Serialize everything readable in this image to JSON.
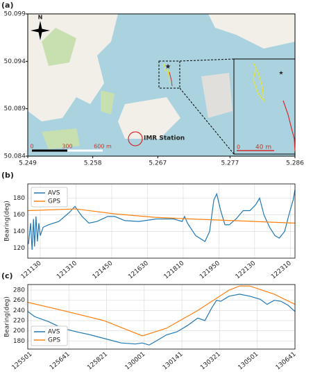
{
  "chart_data": [
    {
      "type": "map",
      "label": "(a)",
      "xlim": [
        5.249,
        5.286
      ],
      "xticks": [
        5.249,
        5.258,
        5.267,
        5.277,
        5.286
      ],
      "ylim": [
        50.084,
        50.099
      ],
      "yticks": [
        50.084,
        50.089,
        50.094,
        50.099
      ],
      "annotations": [
        "N",
        "IMR Station",
        "0",
        "300",
        "600 m",
        "0",
        "40 m"
      ]
    },
    {
      "type": "line",
      "label": "(b)",
      "ylabel": "Bearing(deg)",
      "legend": "upper left",
      "grid": true,
      "xlim": [
        "12:10:55",
        "12:23:23"
      ],
      "xticks": [
        {
          "value": "12:11:30",
          "label": "121130"
        },
        {
          "value": "12:13:10",
          "label": "121310"
        },
        {
          "value": "12:14:50",
          "label": "121450"
        },
        {
          "value": "12:16:30",
          "label": "121630"
        },
        {
          "value": "12:18:10",
          "label": "121810"
        },
        {
          "value": "12:19:50",
          "label": "121950"
        },
        {
          "value": "12:21:30",
          "label": "122130"
        },
        {
          "value": "12:23:10",
          "label": "122310"
        }
      ],
      "ylim": [
        108,
        197
      ],
      "yticks": [
        120,
        140,
        160,
        180
      ],
      "series": [
        {
          "name": "AVS",
          "color": "#1f77b4",
          "x": [
            "12:10:57",
            "12:11:03",
            "12:11:07",
            "12:11:11",
            "12:11:14",
            "12:11:18",
            "12:11:22",
            "12:11:26",
            "12:11:30",
            "12:11:38",
            "12:11:53",
            "12:12:22",
            "12:12:52",
            "12:13:07",
            "12:13:27",
            "12:13:46",
            "12:14:09",
            "12:14:39",
            "12:14:58",
            "12:15:27",
            "12:16:06",
            "12:16:55",
            "12:17:43",
            "12:18:07",
            "12:18:14",
            "12:18:22",
            "12:18:45",
            "12:19:11",
            "12:19:24",
            "12:19:36",
            "12:19:44",
            "12:19:55",
            "12:20:07",
            "12:20:19",
            "12:20:38",
            "12:20:58",
            "12:21:17",
            "12:21:33",
            "12:21:44",
            "12:21:56",
            "12:22:12",
            "12:22:27",
            "12:22:39",
            "12:22:54",
            "12:23:06",
            "12:23:18",
            "12:23:23"
          ],
          "values": [
            125,
            150,
            118,
            155,
            122,
            158,
            128,
            150,
            135,
            145,
            148,
            152,
            163,
            170,
            158,
            150,
            152,
            158,
            158,
            153,
            152,
            155,
            155,
            152,
            158,
            150,
            135,
            128,
            140,
            178,
            185,
            165,
            148,
            148,
            155,
            165,
            165,
            172,
            180,
            160,
            145,
            135,
            132,
            140,
            160,
            178,
            190
          ]
        },
        {
          "name": "GPS",
          "color": "#ff7f0e",
          "x": [
            "12:10:55",
            "12:13:10",
            "12:15:00",
            "12:16:50",
            "12:18:30",
            "12:20:30",
            "12:23:23"
          ],
          "values": [
            165,
            167,
            161,
            157,
            155,
            153,
            150
          ]
        }
      ]
    },
    {
      "type": "line",
      "label": "(c)",
      "ylabel": "Bearing(deg)",
      "legend": "lower left",
      "grid": true,
      "xlim": [
        "12:54:52",
        "13:06:41"
      ],
      "xticks": [
        {
          "value": "12:55:01",
          "label": "125501"
        },
        {
          "value": "12:56:41",
          "label": "125641"
        },
        {
          "value": "12:58:21",
          "label": "125821"
        },
        {
          "value": "13:00:01",
          "label": "130001"
        },
        {
          "value": "13:01:41",
          "label": "130141"
        },
        {
          "value": "13:03:21",
          "label": "130321"
        },
        {
          "value": "13:05:01",
          "label": "130501"
        },
        {
          "value": "13:06:41",
          "label": "130641"
        }
      ],
      "ylim": [
        164,
        291
      ],
      "yticks": [
        180,
        200,
        220,
        240,
        260,
        280
      ],
      "series": [
        {
          "name": "AVS",
          "color": "#1f77b4",
          "x": [
            "12:54:52",
            "12:55:10",
            "12:55:47",
            "12:56:24",
            "12:57:01",
            "12:57:38",
            "12:58:14",
            "12:59:00",
            "12:59:37",
            "12:59:56",
            "13:00:14",
            "13:00:33",
            "13:01:00",
            "13:01:28",
            "13:01:55",
            "13:02:23",
            "13:02:42",
            "13:03:00",
            "13:03:13",
            "13:03:24",
            "13:03:46",
            "13:04:14",
            "13:04:41",
            "13:05:09",
            "13:05:27",
            "13:05:46",
            "13:06:04",
            "13:06:23",
            "13:06:41"
          ],
          "values": [
            238,
            228,
            218,
            205,
            198,
            192,
            185,
            176,
            174,
            176,
            172,
            180,
            192,
            198,
            210,
            225,
            220,
            245,
            260,
            258,
            268,
            272,
            268,
            262,
            252,
            260,
            258,
            250,
            238
          ]
        },
        {
          "name": "GPS",
          "color": "#ff7f0e",
          "x": [
            "12:54:52",
            "12:56:24",
            "12:58:14",
            "12:59:56",
            "13:01:00",
            "13:02:23",
            "13:03:46",
            "13:04:14",
            "13:04:41",
            "13:05:46",
            "13:06:41"
          ],
          "values": [
            256,
            240,
            220,
            190,
            205,
            240,
            280,
            288,
            288,
            272,
            252
          ]
        }
      ]
    }
  ]
}
